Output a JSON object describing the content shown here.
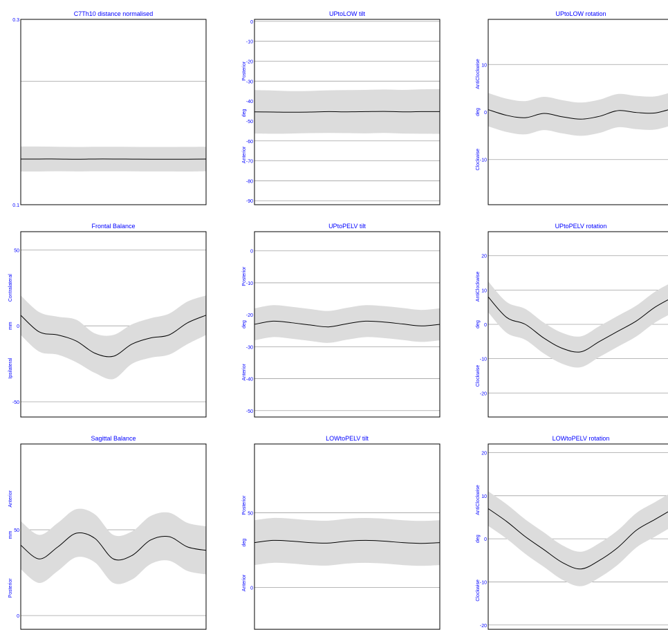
{
  "colors": {
    "label": "#0000ff",
    "grid": "#a0a0a0",
    "band": "#dcdcdc",
    "line": "#000000",
    "frame": "#000000"
  },
  "chart_data": [
    {
      "type": "line",
      "title": "C7Th10 distance normalised",
      "ylim": [
        0.1,
        0.3
      ],
      "yticks": [
        {
          "v": 0.1,
          "label": "0.1"
        },
        {
          "v": 0.3,
          "label": "0.3"
        }
      ],
      "gridlines": [
        0.2333
      ],
      "y_axis_texts": [],
      "series": [
        {
          "values": [
            0.1493,
            0.1493,
            0.1493,
            0.1491,
            0.1493,
            0.1493,
            0.1492,
            0.1491,
            0.1491,
            0.1491,
            0.1493
          ],
          "sd_upper": [
            0.1628,
            0.1628,
            0.1625,
            0.1623,
            0.1625,
            0.1625,
            0.1624,
            0.1623,
            0.1623,
            0.1624,
            0.1625
          ],
          "sd_lower": [
            0.1358,
            0.1358,
            0.1361,
            0.1359,
            0.1361,
            0.1361,
            0.136,
            0.1359,
            0.1359,
            0.1358,
            0.1361
          ]
        }
      ]
    },
    {
      "type": "line",
      "title": "UPtoLOW tilt",
      "ylim": [
        -92,
        1
      ],
      "yticks": [
        {
          "v": 0,
          "label": "0"
        },
        {
          "v": -10,
          "label": "-10"
        },
        {
          "v": -20,
          "label": "-20"
        },
        {
          "v": -30,
          "label": "-30"
        },
        {
          "v": -40,
          "label": "-40"
        },
        {
          "v": -50,
          "label": "-50"
        },
        {
          "v": -60,
          "label": "-60"
        },
        {
          "v": -70,
          "label": "-70"
        },
        {
          "v": -80,
          "label": "-80"
        },
        {
          "v": -90,
          "label": "-90"
        }
      ],
      "gridlines": [
        0,
        -10,
        -20,
        -30,
        -40,
        -50,
        -60,
        -70,
        -80,
        -90
      ],
      "y_axis_texts": [
        {
          "text": "Posterior",
          "v": -25
        },
        {
          "text": "deg",
          "v": -46
        },
        {
          "text": "Anterior",
          "v": -67
        }
      ],
      "series": [
        {
          "values": [
            -45.4,
            -45.5,
            -45.6,
            -45.5,
            -45.3,
            -45.4,
            -45.3,
            -45.2,
            -45.4,
            -45.3,
            -45.3
          ],
          "sd_upper": [
            -34.5,
            -34.7,
            -35.0,
            -34.9,
            -34.6,
            -34.5,
            -34.4,
            -34.2,
            -34.4,
            -34.1,
            -34.0
          ],
          "sd_lower": [
            -56.3,
            -56.4,
            -56.3,
            -56.1,
            -56.0,
            -56.1,
            -56.2,
            -56.0,
            -56.3,
            -56.4,
            -56.5
          ]
        }
      ]
    },
    {
      "type": "line",
      "title": "UPtoLOW rotation",
      "ylim": [
        -19.5,
        19.5
      ],
      "yticks": [
        {
          "v": 10,
          "label": "10"
        },
        {
          "v": 0,
          "label": "0"
        },
        {
          "v": -10,
          "label": "-10"
        }
      ],
      "gridlines": [
        10,
        0,
        -10
      ],
      "y_axis_texts": [
        {
          "text": "AntiClockwise",
          "v": 8
        },
        {
          "text": "deg",
          "v": 0
        },
        {
          "text": "Clockwise",
          "v": -10
        }
      ],
      "series": [
        {
          "values": [
            0.5,
            -0.7,
            -1.2,
            -0.3,
            -1.0,
            -1.5,
            -0.9,
            0.3,
            -0.1,
            -0.2,
            0.8
          ],
          "sd_upper": [
            4.0,
            2.8,
            2.3,
            3.2,
            2.5,
            2.0,
            2.6,
            3.8,
            3.4,
            3.3,
            4.3
          ],
          "sd_lower": [
            -3.0,
            -4.2,
            -4.7,
            -3.8,
            -4.5,
            -5.0,
            -4.4,
            -3.2,
            -3.6,
            -3.7,
            -2.7
          ]
        }
      ]
    },
    {
      "type": "line",
      "title": "Frontal Balance",
      "ylim": [
        -60,
        62
      ],
      "yticks": [
        {
          "v": 50,
          "label": "50"
        },
        {
          "v": 0,
          "label": "0"
        },
        {
          "v": -50,
          "label": "-50"
        }
      ],
      "gridlines": [
        50,
        0,
        -50
      ],
      "y_axis_texts": [
        {
          "text": "Contralateral",
          "v": 25
        },
        {
          "text": "mm",
          "v": 0
        },
        {
          "text": "Ipsilateral",
          "v": -28
        }
      ],
      "series": [
        {
          "values": [
            7,
            -4,
            -6,
            -10,
            -18,
            -20,
            -12,
            -8,
            -6,
            2,
            7
          ],
          "sd_upper": [
            20,
            9,
            6,
            4,
            -5,
            -6,
            1,
            5,
            8,
            16,
            20
          ],
          "sd_lower": [
            -6,
            -17,
            -19,
            -24,
            -31,
            -35,
            -25,
            -21,
            -19,
            -12,
            -6
          ]
        }
      ]
    },
    {
      "type": "line",
      "title": "UPtoPELV tilt",
      "ylim": [
        -52,
        6
      ],
      "yticks": [
        {
          "v": 0,
          "label": "0"
        },
        {
          "v": -10,
          "label": "-10"
        },
        {
          "v": -20,
          "label": "-20"
        },
        {
          "v": -30,
          "label": "-30"
        },
        {
          "v": -40,
          "label": "-40"
        },
        {
          "v": -50,
          "label": "-50"
        }
      ],
      "gridlines": [
        0,
        -10,
        -20,
        -30,
        -40,
        -50
      ],
      "y_axis_texts": [
        {
          "text": "Posterior",
          "v": -8
        },
        {
          "text": "deg",
          "v": -23
        },
        {
          "text": "Anterior",
          "v": -38
        }
      ],
      "series": [
        {
          "values": [
            -23,
            -22,
            -22.5,
            -23.2,
            -23.8,
            -22.8,
            -22,
            -22.3,
            -22.9,
            -23.5,
            -23
          ],
          "sd_upper": [
            -18,
            -17,
            -17.5,
            -18.2,
            -18.8,
            -17.8,
            -17,
            -17.3,
            -17.9,
            -18.5,
            -18
          ],
          "sd_lower": [
            -28,
            -27,
            -27.5,
            -28.2,
            -28.8,
            -27.8,
            -27,
            -27.3,
            -27.9,
            -28.5,
            -28
          ]
        }
      ]
    },
    {
      "type": "line",
      "title": "UPtoPELV rotation",
      "ylim": [
        -27,
        27
      ],
      "yticks": [
        {
          "v": 20,
          "label": "20"
        },
        {
          "v": 10,
          "label": "10"
        },
        {
          "v": 0,
          "label": "0"
        },
        {
          "v": -10,
          "label": "-10"
        },
        {
          "v": -20,
          "label": "-20"
        }
      ],
      "gridlines": [
        20,
        10,
        0,
        -10,
        -20
      ],
      "y_axis_texts": [
        {
          "text": "AntiClockwise",
          "v": 11
        },
        {
          "text": "deg",
          "v": 0
        },
        {
          "text": "Clockwise",
          "v": -15
        }
      ],
      "series": [
        {
          "values": [
            8,
            2,
            0,
            -4,
            -7,
            -8,
            -5,
            -2,
            1,
            5,
            8
          ],
          "sd_upper": [
            12.5,
            6.5,
            4.5,
            0.5,
            -2.5,
            -3.5,
            -0.5,
            2.5,
            5.5,
            9.5,
            12.5
          ],
          "sd_lower": [
            3.5,
            -2.5,
            -4.5,
            -8.5,
            -11.5,
            -12.5,
            -9.5,
            -6.5,
            -3.5,
            0.5,
            3.5
          ]
        }
      ]
    },
    {
      "type": "line",
      "title": "Sagittal Balance",
      "ylim": [
        -8,
        100
      ],
      "yticks": [
        {
          "v": 50,
          "label": "50"
        },
        {
          "v": 0,
          "label": "0"
        }
      ],
      "gridlines": [
        50,
        0
      ],
      "y_axis_texts": [
        {
          "text": "Anterior",
          "v": 68
        },
        {
          "text": "mm",
          "v": 47
        },
        {
          "text": "Posterior",
          "v": 16
        }
      ],
      "series": [
        {
          "values": [
            41,
            33,
            40,
            48,
            45,
            33,
            35,
            44,
            46,
            40,
            38
          ],
          "sd_upper": [
            55,
            47,
            54,
            62,
            59,
            47,
            49,
            58,
            60,
            54,
            52
          ],
          "sd_lower": [
            27,
            19,
            26,
            34,
            31,
            19,
            21,
            30,
            32,
            26,
            24
          ]
        }
      ]
    },
    {
      "type": "line",
      "title": "LOWtoPELV tilt",
      "ylim": [
        -28,
        96
      ],
      "yticks": [
        {
          "v": 50,
          "label": "50"
        },
        {
          "v": 0,
          "label": "0"
        }
      ],
      "gridlines": [
        50,
        0
      ],
      "y_axis_texts": [
        {
          "text": "Posterior",
          "v": 55
        },
        {
          "text": "deg",
          "v": 30
        },
        {
          "text": "Anterior",
          "v": 3
        }
      ],
      "series": [
        {
          "values": [
            30,
            31.5,
            31,
            30,
            29.7,
            31,
            31.5,
            31,
            30,
            29.5,
            30
          ],
          "sd_upper": [
            45,
            46.5,
            46,
            45,
            44.7,
            46,
            46.5,
            46,
            45,
            44.5,
            45
          ],
          "sd_lower": [
            15,
            16.5,
            16,
            15,
            14.7,
            16,
            16.5,
            16,
            15,
            14.5,
            15
          ]
        }
      ]
    },
    {
      "type": "line",
      "title": "LOWtoPELV rotation",
      "ylim": [
        -21,
        22
      ],
      "yticks": [
        {
          "v": 20,
          "label": "20"
        },
        {
          "v": 10,
          "label": "10"
        },
        {
          "v": 0,
          "label": "0"
        },
        {
          "v": -10,
          "label": "-10"
        },
        {
          "v": -20,
          "label": "-20"
        }
      ],
      "gridlines": [
        20,
        10,
        0,
        -10,
        -20
      ],
      "y_axis_texts": [
        {
          "text": "AntiClockwise",
          "v": 9
        },
        {
          "text": "deg",
          "v": 0
        },
        {
          "text": "Clockwise",
          "v": -12
        }
      ],
      "series": [
        {
          "values": [
            7,
            4,
            0.5,
            -2.5,
            -5.5,
            -7,
            -5,
            -2,
            2,
            4.5,
            7
          ],
          "sd_upper": [
            11,
            8,
            4.5,
            1.5,
            -1.5,
            -3,
            -1,
            2,
            6,
            8.5,
            11
          ],
          "sd_lower": [
            3,
            0,
            -3.5,
            -6.5,
            -9.5,
            -11,
            -9,
            -6,
            -2,
            0.5,
            3
          ]
        }
      ]
    }
  ]
}
